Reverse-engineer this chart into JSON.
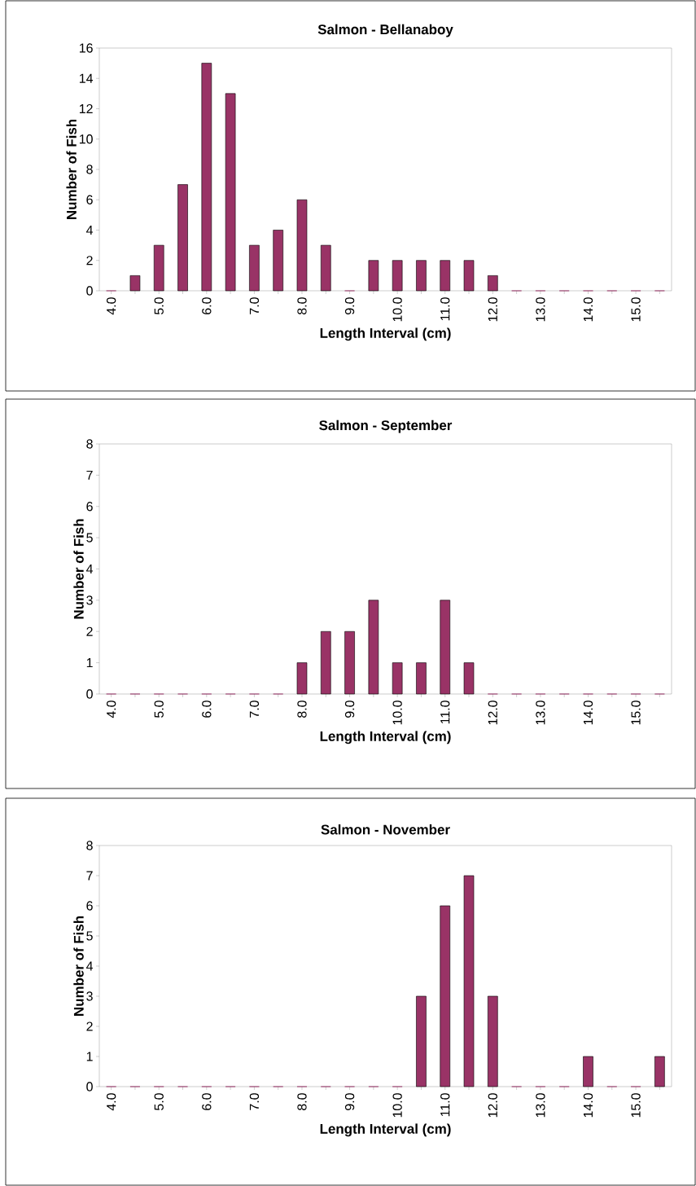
{
  "chart_data": [
    {
      "type": "bar",
      "title": "Salmon - Bellanaboy",
      "xlabel": "Length Interval (cm)",
      "ylabel": "Number of Fish",
      "color": "#993366",
      "categories": [
        "4.0",
        null,
        "5.0",
        null,
        "6.0",
        null,
        "7.0",
        null,
        "8.0",
        null,
        "9.0",
        null,
        "10.0",
        null,
        "11.0",
        null,
        "12.0",
        null,
        "13.0",
        null,
        "14.0",
        null,
        "15.0",
        null
      ],
      "values": [
        0,
        1,
        3,
        7,
        15,
        13,
        3,
        4,
        6,
        3,
        0,
        2,
        2,
        2,
        2,
        2,
        1,
        0,
        0,
        0,
        0,
        0,
        0,
        0
      ],
      "ylim": [
        0,
        16
      ],
      "yticks": [
        0,
        2,
        4,
        6,
        8,
        10,
        12,
        14,
        16
      ]
    },
    {
      "type": "bar",
      "title": "Salmon - September",
      "xlabel": "Length Interval (cm)",
      "ylabel": "Number of Fish",
      "color": "#993366",
      "categories": [
        "4.0",
        null,
        "5.0",
        null,
        "6.0",
        null,
        "7.0",
        null,
        "8.0",
        null,
        "9.0",
        null,
        "10.0",
        null,
        "11.0",
        null,
        "12.0",
        null,
        "13.0",
        null,
        "14.0",
        null,
        "15.0",
        null
      ],
      "values": [
        0,
        0,
        0,
        0,
        0,
        0,
        0,
        0,
        1,
        2,
        2,
        3,
        1,
        1,
        3,
        1,
        0,
        0,
        0,
        0,
        0,
        0,
        0,
        0
      ],
      "ylim": [
        0,
        8
      ],
      "yticks": [
        0,
        1,
        2,
        3,
        4,
        5,
        6,
        7,
        8
      ]
    },
    {
      "type": "bar",
      "title": "Salmon - November",
      "xlabel": "Length Interval (cm)",
      "ylabel": "Number of Fish",
      "color": "#993366",
      "categories": [
        "4.0",
        null,
        "5.0",
        null,
        "6.0",
        null,
        "7.0",
        null,
        "8.0",
        null,
        "9.0",
        null,
        "10.0",
        null,
        "11.0",
        null,
        "12.0",
        null,
        "13.0",
        null,
        "14.0",
        null,
        "15.0",
        null
      ],
      "values": [
        0,
        0,
        0,
        0,
        0,
        0,
        0,
        0,
        0,
        0,
        0,
        0,
        0,
        3,
        6,
        7,
        3,
        0,
        0,
        0,
        1,
        0,
        0,
        1
      ],
      "ylim": [
        0,
        8
      ],
      "yticks": [
        0,
        1,
        2,
        3,
        4,
        5,
        6,
        7,
        8
      ]
    }
  ]
}
